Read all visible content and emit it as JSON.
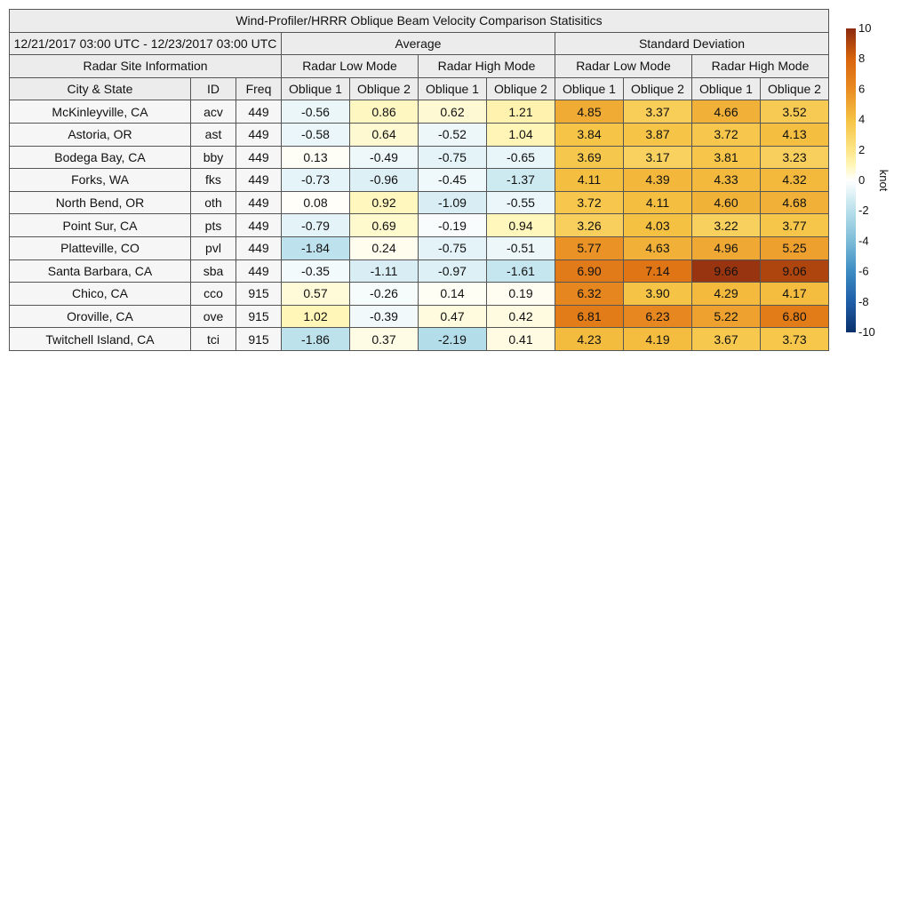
{
  "chart_data": {
    "type": "table",
    "title": "Wind-Profiler/HRRR Oblique Beam Velocity Comparison Statisitics",
    "date_range": "12/21/2017 03:00 UTC - 12/23/2017 03:00 UTC",
    "group_headers": {
      "average": "Average",
      "std": "Standard Deviation"
    },
    "site_info_header": "Radar Site Information",
    "mode_headers": [
      "Radar Low Mode",
      "Radar High Mode",
      "Radar Low Mode",
      "Radar High Mode"
    ],
    "columns": [
      "City & State",
      "ID",
      "Freq",
      "Oblique 1",
      "Oblique 2",
      "Oblique 1",
      "Oblique 2",
      "Oblique 1",
      "Oblique 2",
      "Oblique 1",
      "Oblique 2"
    ],
    "rows": [
      {
        "city": "McKinleyville, CA",
        "id": "acv",
        "freq": "449",
        "values": [
          "-0.56",
          "0.86",
          "0.62",
          "1.21",
          "4.85",
          "3.37",
          "4.66",
          "3.52"
        ]
      },
      {
        "city": "Astoria, OR",
        "id": "ast",
        "freq": "449",
        "values": [
          "-0.58",
          "0.64",
          "-0.52",
          "1.04",
          "3.84",
          "3.87",
          "3.72",
          "4.13"
        ]
      },
      {
        "city": "Bodega Bay, CA",
        "id": "bby",
        "freq": "449",
        "values": [
          "0.13",
          "-0.49",
          "-0.75",
          "-0.65",
          "3.69",
          "3.17",
          "3.81",
          "3.23"
        ]
      },
      {
        "city": "Forks, WA",
        "id": "fks",
        "freq": "449",
        "values": [
          "-0.73",
          "-0.96",
          "-0.45",
          "-1.37",
          "4.11",
          "4.39",
          "4.33",
          "4.32"
        ]
      },
      {
        "city": "North Bend, OR",
        "id": "oth",
        "freq": "449",
        "values": [
          "0.08",
          "0.92",
          "-1.09",
          "-0.55",
          "3.72",
          "4.11",
          "4.60",
          "4.68"
        ]
      },
      {
        "city": "Point Sur, CA",
        "id": "pts",
        "freq": "449",
        "values": [
          "-0.79",
          "0.69",
          "-0.19",
          "0.94",
          "3.26",
          "4.03",
          "3.22",
          "3.77"
        ]
      },
      {
        "city": "Platteville, CO",
        "id": "pvl",
        "freq": "449",
        "values": [
          "-1.84",
          "0.24",
          "-0.75",
          "-0.51",
          "5.77",
          "4.63",
          "4.96",
          "5.25"
        ]
      },
      {
        "city": "Santa Barbara, CA",
        "id": "sba",
        "freq": "449",
        "values": [
          "-0.35",
          "-1.11",
          "-0.97",
          "-1.61",
          "6.90",
          "7.14",
          "9.66",
          "9.06"
        ]
      },
      {
        "city": "Chico, CA",
        "id": "cco",
        "freq": "915",
        "values": [
          "0.57",
          "-0.26",
          "0.14",
          "0.19",
          "6.32",
          "3.90",
          "4.29",
          "4.17"
        ]
      },
      {
        "city": "Oroville, CA",
        "id": "ove",
        "freq": "915",
        "values": [
          "1.02",
          "-0.39",
          "0.47",
          "0.42",
          "6.81",
          "6.23",
          "5.22",
          "6.80"
        ]
      },
      {
        "city": "Twitchell Island, CA",
        "id": "tci",
        "freq": "915",
        "values": [
          "-1.86",
          "0.37",
          "-2.19",
          "0.41",
          "4.23",
          "4.19",
          "3.67",
          "3.73"
        ]
      }
    ],
    "colorbar": {
      "label": "knot",
      "range": [
        -10,
        10
      ],
      "ticks": [
        "10",
        "8",
        "6",
        "4",
        "2",
        "0",
        "-2",
        "-4",
        "-6",
        "-8",
        "-10"
      ],
      "scale_colors": [
        {
          "v": -10,
          "c": "#08306b"
        },
        {
          "v": -8,
          "c": "#1f5ea8"
        },
        {
          "v": -6,
          "c": "#3c8cc3"
        },
        {
          "v": -4,
          "c": "#7cbcd8"
        },
        {
          "v": -2,
          "c": "#b8e0eb"
        },
        {
          "v": 0,
          "c": "#ffffff"
        },
        {
          "v": 1,
          "c": "#fff6b8"
        },
        {
          "v": 2,
          "c": "#fde588"
        },
        {
          "v": 4,
          "c": "#f5c242"
        },
        {
          "v": 6,
          "c": "#e98c22"
        },
        {
          "v": 8,
          "c": "#d8640c"
        },
        {
          "v": 10,
          "c": "#8b2a10"
        }
      ]
    }
  }
}
